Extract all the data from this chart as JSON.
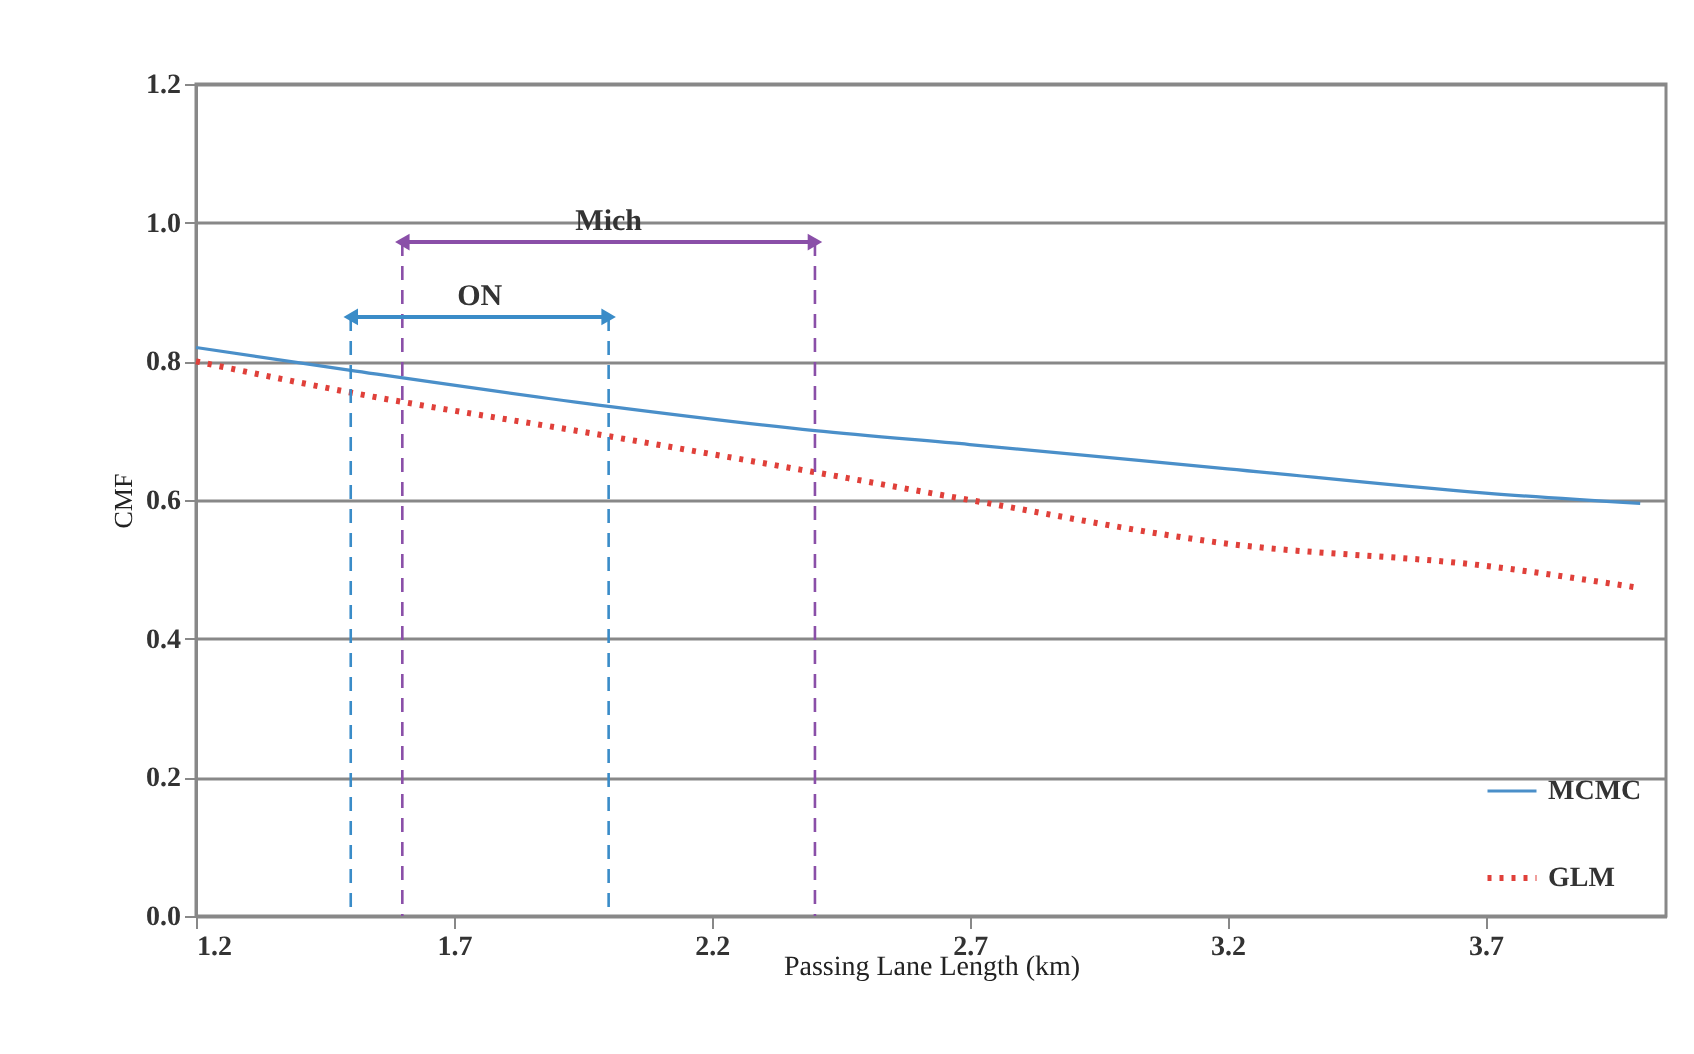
{
  "chart_data": {
    "type": "line",
    "xlabel": "Passing Lane Length (km)",
    "ylabel": "CMF",
    "x": [
      1.2,
      1.5,
      2.0,
      2.4,
      2.7,
      3.2,
      3.7,
      4.0
    ],
    "series": [
      {
        "name": "MCMC",
        "color": "#4a8fc9",
        "line_style": "solid",
        "values": [
          0.82,
          0.787,
          0.735,
          0.7,
          0.68,
          0.645,
          0.61,
          0.595
        ]
      },
      {
        "name": "GLM",
        "color": "#e0403a",
        "line_style": "dotted",
        "values": [
          0.8,
          0.755,
          0.692,
          0.64,
          0.6,
          0.537,
          0.505,
          0.473
        ]
      }
    ],
    "xlim": [
      1.2,
      4.05
    ],
    "xticks": [
      1.2,
      1.7,
      2.2,
      2.7,
      3.2,
      3.7
    ],
    "ylim": [
      0,
      1.2
    ],
    "yticks": [
      {
        "value": 0,
        "label": "0.0"
      },
      0.2,
      0.4,
      0.6,
      0.8,
      {
        "value": 1,
        "label": "1.0"
      },
      1.2
    ],
    "grid": "y",
    "legend": "bottom right",
    "ref_lines": [
      {
        "axis": "x",
        "value": 1.5,
        "color": "#3a8cc8",
        "line_style": "dashed"
      },
      {
        "axis": "x",
        "value": 2.0,
        "color": "#3a8cc8",
        "line_style": "dashed"
      },
      {
        "axis": "x",
        "value": 1.6,
        "color": "#8a4fa8",
        "line_style": "dashed"
      },
      {
        "axis": "x",
        "value": 2.4,
        "color": "#8a4fa8",
        "line_style": "dashed"
      }
    ],
    "annotations": [
      "ON",
      "Mich"
    ]
  }
}
